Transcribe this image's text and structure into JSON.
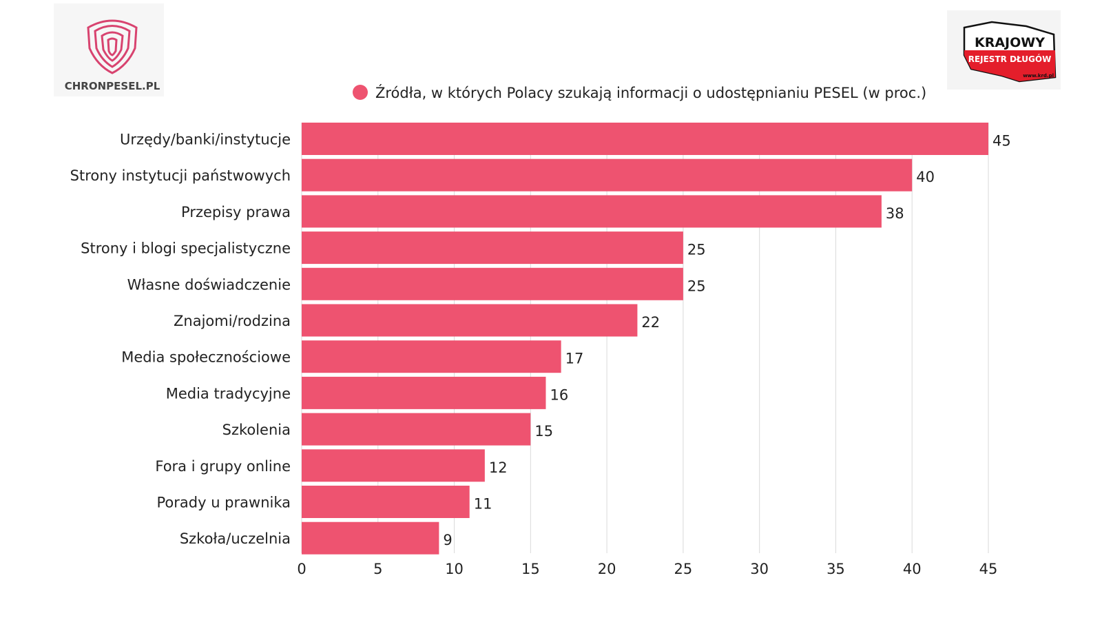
{
  "logos": {
    "left": {
      "text": "CHRONPESEL.PL"
    },
    "right": {
      "line1": "KRAJOWY",
      "line2": "REJESTR DŁUGÓW",
      "line3": "www.krd.pl"
    }
  },
  "chart_data": {
    "type": "bar",
    "orientation": "horizontal",
    "legend_placement": "top",
    "grid": true,
    "xlim": [
      0,
      45
    ],
    "xticks": [
      0,
      5,
      10,
      15,
      20,
      25,
      30,
      35,
      40,
      45
    ],
    "series": [
      {
        "name": "Źródła, w których Polacy szukają informacji o udostępnianiu PESEL (w proc.)",
        "color": "#ee5370"
      }
    ],
    "categories": [
      "Urzędy/banki/instytucje",
      "Strony instytucji państwowych",
      "Przepisy prawa",
      "Strony i blogi specjalistyczne",
      "Własne doświadczenie",
      "Znajomi/rodzina",
      "Media społecznościowe",
      "Media tradycyjne",
      "Szkolenia",
      "Fora i grupy online",
      "Porady u prawnika",
      "Szkoła/uczelnia"
    ],
    "values": [
      45,
      40,
      38,
      25,
      25,
      22,
      17,
      16,
      15,
      12,
      11,
      9
    ]
  }
}
